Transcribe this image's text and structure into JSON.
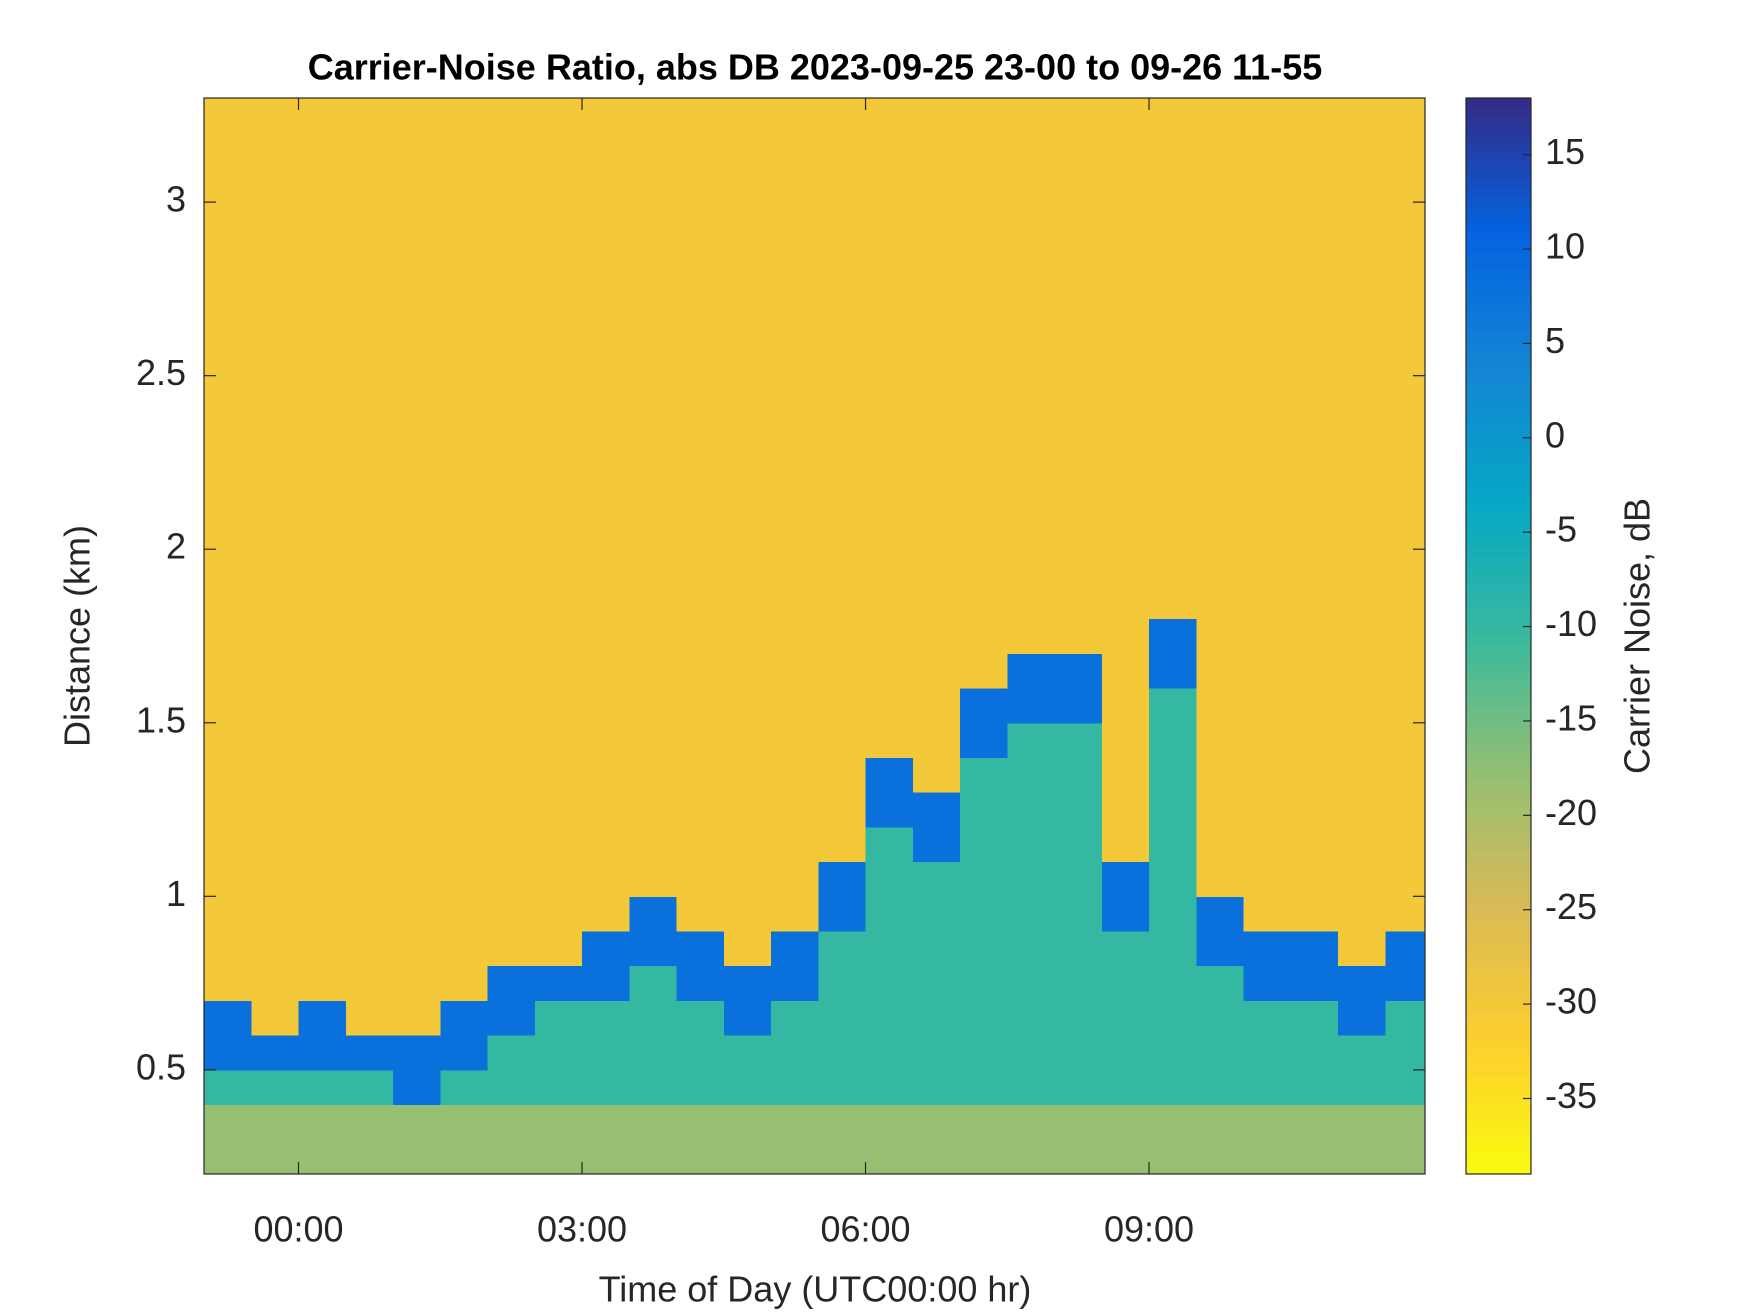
{
  "chart_data": {
    "type": "heatmap",
    "title": "Carrier-Noise Ratio, abs DB 2023-09-25 23-00 to 09-26 11-55",
    "xlabel": "Time of Day (UTC00:00 hr)",
    "ylabel": "Distance (km)",
    "xlim": [
      -1,
      11.92
    ],
    "ylim": [
      0.2,
      3.3
    ],
    "xticks": [
      {
        "value": 0,
        "label": "00:00"
      },
      {
        "value": 3,
        "label": "03:00"
      },
      {
        "value": 6,
        "label": "06:00"
      },
      {
        "value": 9,
        "label": "09:00"
      }
    ],
    "yticks": [
      0.5,
      1,
      1.5,
      2,
      2.5,
      3
    ],
    "x_bins": [
      -1,
      -0.5,
      0,
      0.5,
      1,
      1.5,
      2,
      2.5,
      3,
      3.5,
      4,
      4.5,
      5,
      5.5,
      6,
      6.5,
      7,
      7.5,
      8,
      8.5,
      9,
      9.5,
      10,
      10.5,
      11,
      11.5,
      11.92
    ],
    "y_bins": [
      0.2,
      0.3,
      0.4,
      0.5,
      0.6,
      0.7,
      0.8,
      0.9,
      1.0,
      1.1,
      1.2,
      1.3,
      1.4,
      1.5,
      1.6,
      1.7,
      1.8,
      1.9,
      2.0,
      2.1,
      3.3
    ],
    "z": [
      [
        -18,
        -18,
        -18,
        -18,
        -18,
        -18,
        -18,
        -18,
        -18,
        -18,
        -18,
        -18,
        -18,
        -18,
        -18,
        -18,
        -18,
        -18,
        -18,
        -18,
        -18,
        -18,
        -18,
        -18,
        -18,
        -18
      ],
      [
        -18,
        -18,
        -18,
        -18,
        -18,
        -18,
        -18,
        -18,
        -18,
        -18,
        -18,
        -18,
        -18,
        -18,
        -18,
        -18,
        -18,
        -18,
        -18,
        -18,
        -18,
        -18,
        -18,
        -18,
        -18,
        -18
      ],
      [
        -10,
        -10,
        -10,
        -10,
        8,
        -10,
        -10,
        -10,
        -10,
        -10,
        -10,
        -10,
        -10,
        -10,
        -10,
        -10,
        -10,
        -10,
        -10,
        -10,
        -10,
        -10,
        -10,
        -10,
        -10,
        -10
      ],
      [
        8,
        8,
        8,
        8,
        8,
        8,
        -10,
        -10,
        -10,
        -10,
        -10,
        -10,
        -10,
        -10,
        -10,
        -10,
        -10,
        -10,
        -10,
        -10,
        -10,
        -10,
        -10,
        -10,
        -10,
        -10
      ],
      [
        8,
        -30,
        8,
        -30,
        -30,
        8,
        8,
        -10,
        -10,
        -10,
        -10,
        8,
        -10,
        -10,
        -10,
        -10,
        -10,
        -10,
        -10,
        -10,
        -10,
        -10,
        -10,
        -10,
        8,
        -10
      ],
      [
        -30,
        -30,
        -30,
        -30,
        -30,
        -30,
        8,
        8,
        8,
        -10,
        8,
        8,
        8,
        -10,
        -10,
        -10,
        -10,
        -10,
        -10,
        -10,
        -10,
        -10,
        8,
        8,
        8,
        8
      ],
      [
        -30,
        -30,
        -30,
        -30,
        -30,
        -30,
        -30,
        -30,
        8,
        8,
        8,
        -30,
        8,
        -10,
        -10,
        -10,
        -10,
        -10,
        -10,
        -10,
        -10,
        8,
        8,
        8,
        -30,
        8
      ],
      [
        -30,
        -30,
        -30,
        -30,
        -30,
        -30,
        -30,
        -30,
        -30,
        8,
        -30,
        -30,
        -30,
        8,
        -10,
        -10,
        -10,
        -10,
        -10,
        8,
        -10,
        8,
        -30,
        -30,
        -30,
        -30
      ],
      [
        -30,
        -30,
        -30,
        -30,
        -30,
        -30,
        -30,
        -30,
        -30,
        -30,
        -30,
        -30,
        -30,
        8,
        -10,
        -10,
        -10,
        -10,
        -10,
        8,
        -10,
        -30,
        -30,
        -30,
        -30,
        -30
      ],
      [
        -30,
        -30,
        -30,
        -30,
        -30,
        -30,
        -30,
        -30,
        -30,
        -30,
        -30,
        -30,
        -30,
        -30,
        -10,
        8,
        -10,
        -10,
        -10,
        -30,
        -10,
        -30,
        -30,
        -30,
        -30,
        -30
      ],
      [
        -30,
        -30,
        -30,
        -30,
        -30,
        -30,
        -30,
        -30,
        -30,
        -30,
        -30,
        -30,
        -30,
        -30,
        8,
        8,
        -10,
        -10,
        -10,
        -30,
        -10,
        -30,
        -30,
        -30,
        -30,
        -30
      ],
      [
        -30,
        -30,
        -30,
        -30,
        -30,
        -30,
        -30,
        -30,
        -30,
        -30,
        -30,
        -30,
        -30,
        -30,
        8,
        -30,
        -10,
        -10,
        -10,
        -30,
        -10,
        -30,
        -30,
        -30,
        -30,
        -30
      ],
      [
        -30,
        -30,
        -30,
        -30,
        -30,
        -30,
        -30,
        -30,
        -30,
        -30,
        -30,
        -30,
        -30,
        -30,
        -30,
        -30,
        8,
        -10,
        -10,
        -30,
        -10,
        -30,
        -30,
        -30,
        -30,
        -30
      ],
      [
        -30,
        -30,
        -30,
        -30,
        -30,
        -30,
        -30,
        -30,
        -30,
        -30,
        -30,
        -30,
        -30,
        -30,
        -30,
        -30,
        8,
        8,
        8,
        -30,
        -10,
        -30,
        -30,
        -30,
        -30,
        -30
      ],
      [
        -30,
        -30,
        -30,
        -30,
        -30,
        -30,
        -30,
        -30,
        -30,
        -30,
        -30,
        -30,
        -30,
        -30,
        -30,
        -30,
        -30,
        8,
        8,
        -30,
        8,
        -30,
        -30,
        -30,
        -30,
        -30
      ],
      [
        -30,
        -30,
        -30,
        -30,
        -30,
        -30,
        -30,
        -30,
        -30,
        -30,
        -30,
        -30,
        -30,
        -30,
        -30,
        -30,
        -30,
        -30,
        -30,
        -30,
        8,
        -30,
        -30,
        -30,
        -30,
        -30
      ],
      [
        -30,
        -30,
        -30,
        -30,
        -30,
        -30,
        -30,
        -30,
        -30,
        -30,
        -30,
        -30,
        -30,
        -30,
        -30,
        -30,
        -30,
        -30,
        -30,
        -30,
        -30,
        -30,
        -30,
        -30,
        -30,
        -30
      ],
      [
        -30,
        -30,
        -30,
        -30,
        -30,
        -30,
        -30,
        -30,
        -30,
        -30,
        -30,
        -30,
        -30,
        -30,
        -30,
        -30,
        -30,
        -30,
        -30,
        -30,
        -30,
        -30,
        -30,
        -30,
        -30,
        -30
      ],
      [
        -30,
        -30,
        -30,
        -30,
        -30,
        -30,
        -30,
        -30,
        -30,
        -30,
        -30,
        -30,
        -30,
        -30,
        -30,
        -30,
        -30,
        -30,
        -30,
        -30,
        -30,
        -30,
        -30,
        -30,
        -30,
        -30
      ],
      [
        -30,
        -30,
        -30,
        -30,
        -30,
        -30,
        -30,
        -30,
        -30,
        -30,
        -30,
        -30,
        -30,
        -30,
        -30,
        -30,
        -30,
        -30,
        -30,
        -30,
        -30,
        -30,
        -30,
        -30,
        -30,
        -30
      ]
    ],
    "colorbar": {
      "label": "Carrier Noise, dB",
      "clim": [
        -39,
        18
      ],
      "ticks": [
        -35,
        -30,
        -25,
        -20,
        -15,
        -10,
        -5,
        0,
        5,
        10,
        15
      ],
      "colormap": [
        "#352a87",
        "#0363e1",
        "#1485d4",
        "#06a7c6",
        "#38b99e",
        "#92bf73",
        "#d9ba56",
        "#fcce2e",
        "#f9fb0e"
      ]
    }
  }
}
